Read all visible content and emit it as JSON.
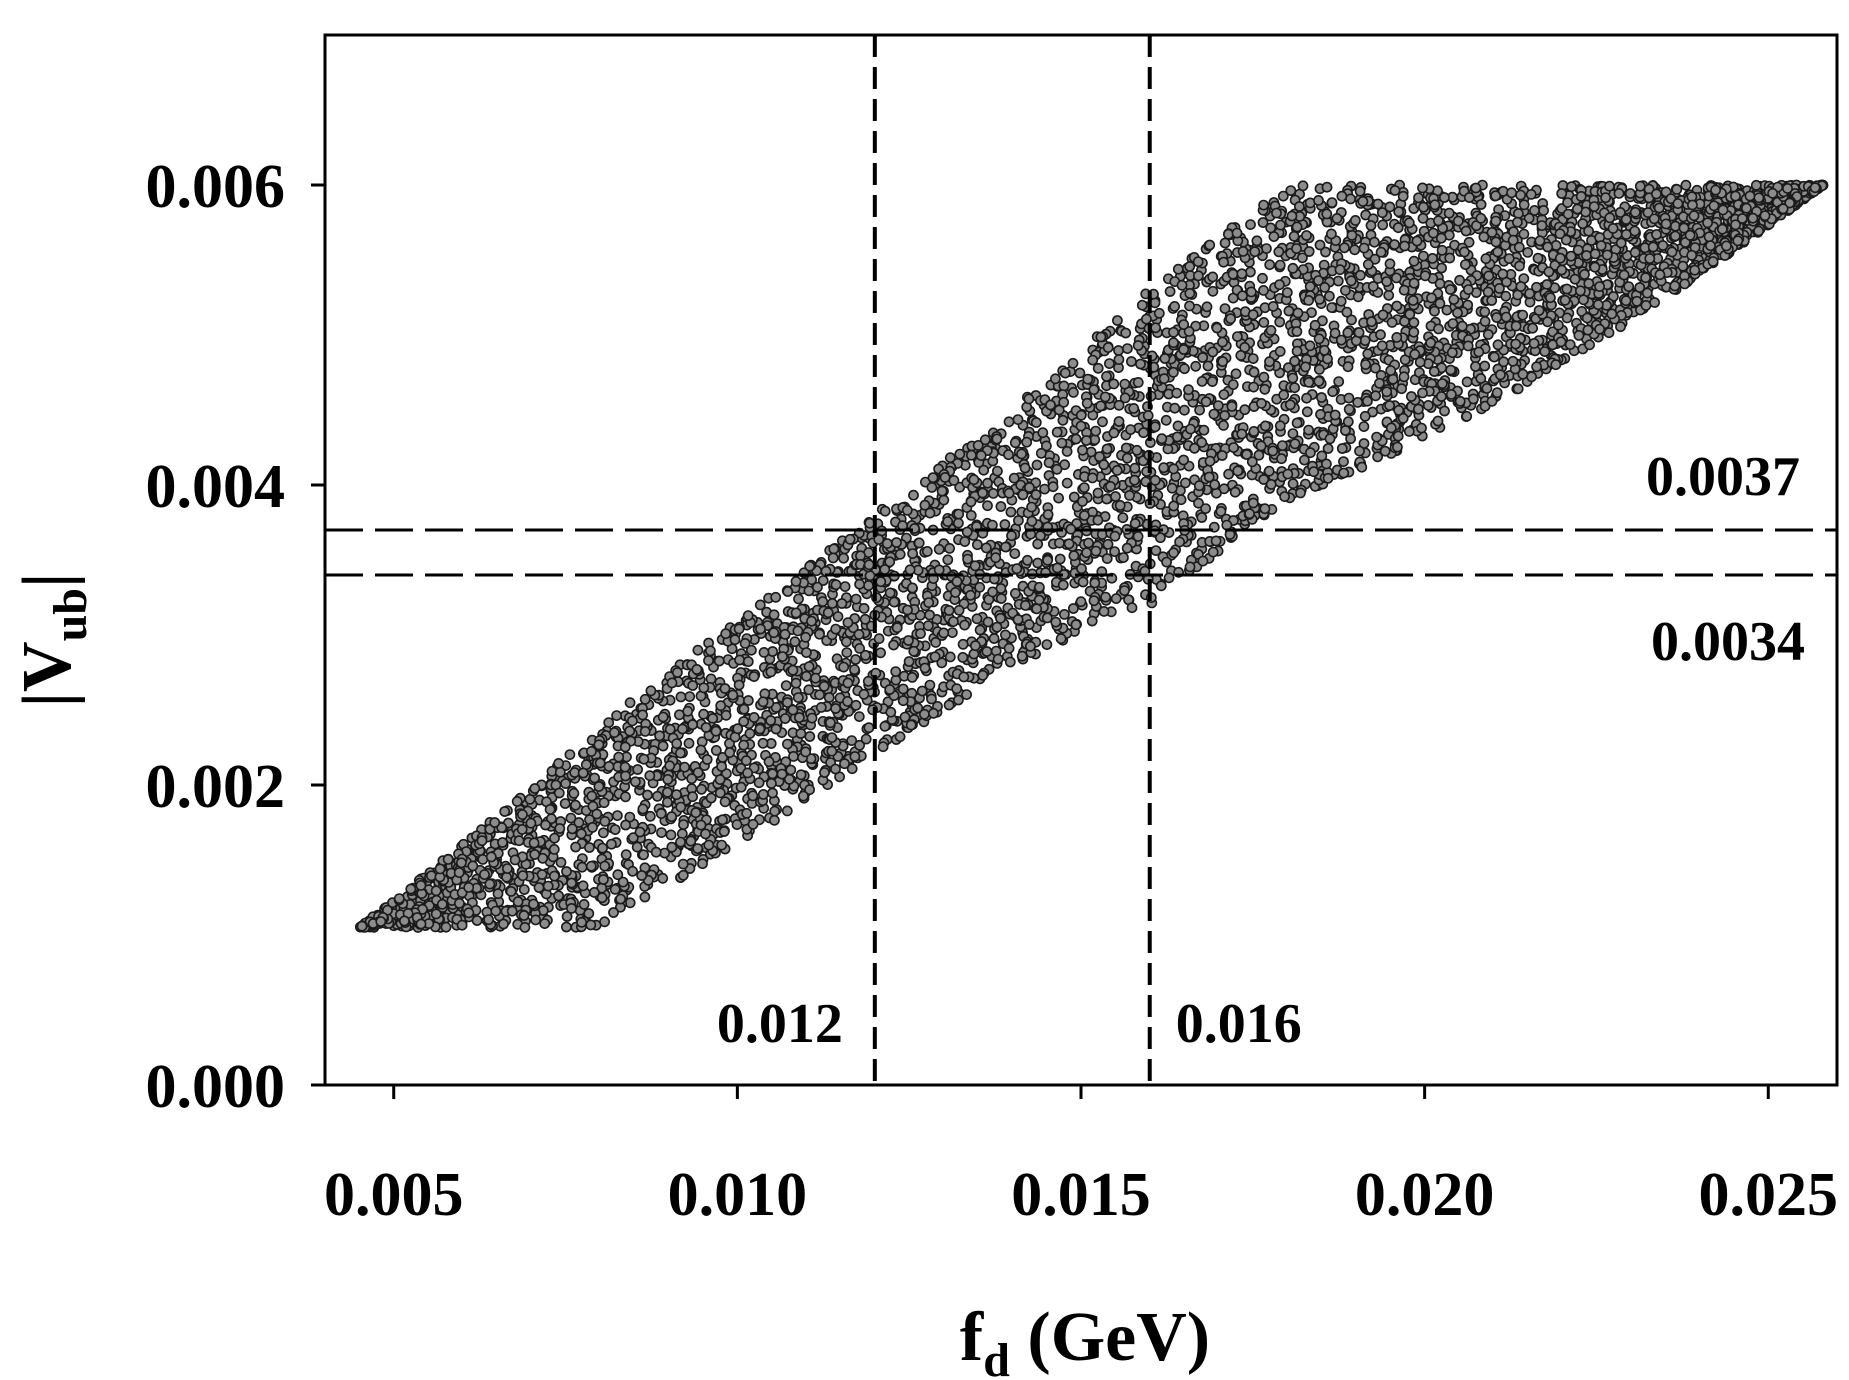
{
  "chart_data": {
    "type": "scatter",
    "title": "",
    "xlabel": {
      "main": "f",
      "sub": "d",
      "unit": " (GeV)"
    },
    "ylabel": {
      "main": "|V",
      "sub": "ub",
      "end": "|"
    },
    "xlim": [
      0.004,
      0.026
    ],
    "ylim": [
      0.0,
      0.007
    ],
    "xticks": [
      {
        "value": 0.005,
        "label": "0.005"
      },
      {
        "value": 0.01,
        "label": "0.010"
      },
      {
        "value": 0.015,
        "label": "0.015"
      },
      {
        "value": 0.02,
        "label": "0.020"
      },
      {
        "value": 0.025,
        "label": "0.025"
      }
    ],
    "yticks": [
      {
        "value": 0.0,
        "label": "0.000"
      },
      {
        "value": 0.002,
        "label": "0.002"
      },
      {
        "value": 0.004,
        "label": "0.004"
      },
      {
        "value": 0.006,
        "label": "0.006"
      }
    ],
    "grid": false,
    "marker_fill": "#8c8c8c",
    "marker_edge": "#1a1a1a",
    "point_region": {
      "x_range": [
        0.0045,
        0.0258
      ],
      "y_range": [
        0.001,
        0.006
      ],
      "lower_bound_points": [
        [
          0.0045,
          0.00105
        ],
        [
          0.008,
          0.00105
        ],
        [
          0.01,
          0.0016
        ],
        [
          0.012,
          0.0022
        ],
        [
          0.014,
          0.0028
        ],
        [
          0.016,
          0.0032
        ],
        [
          0.018,
          0.0039
        ],
        [
          0.02,
          0.0043
        ],
        [
          0.022,
          0.0048
        ],
        [
          0.024,
          0.0054
        ],
        [
          0.0258,
          0.006
        ]
      ],
      "upper_bound_points": [
        [
          0.0045,
          0.00105
        ],
        [
          0.006,
          0.0016
        ],
        [
          0.008,
          0.0024
        ],
        [
          0.01,
          0.0031
        ],
        [
          0.012,
          0.0038
        ],
        [
          0.014,
          0.0045
        ],
        [
          0.016,
          0.0053
        ],
        [
          0.018,
          0.006
        ],
        [
          0.0258,
          0.006
        ]
      ],
      "y_cap": 0.006
    },
    "reference_lines": [
      {
        "orientation": "vertical",
        "value": 0.012,
        "label": "0.012",
        "style": "dashed"
      },
      {
        "orientation": "vertical",
        "value": 0.016,
        "label": "0.016",
        "style": "dashed"
      },
      {
        "orientation": "horizontal",
        "value": 0.0037,
        "label": "0.0037",
        "style": "dashed"
      },
      {
        "orientation": "horizontal",
        "value": 0.0034,
        "label": "0.0034",
        "style": "dashed"
      }
    ]
  }
}
